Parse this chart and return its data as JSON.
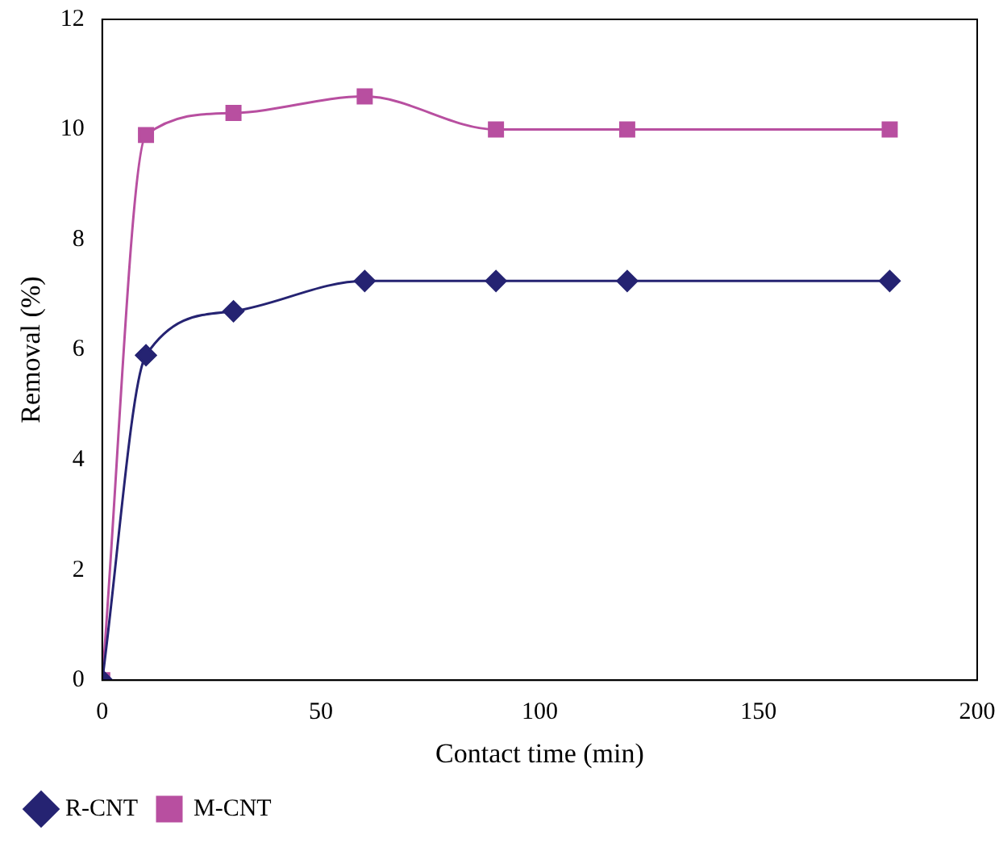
{
  "chart_data": {
    "type": "line",
    "xlabel": "Contact time (min)",
    "ylabel": "Removal (%)",
    "x": [
      0,
      10,
      30,
      60,
      90,
      120,
      180
    ],
    "series": [
      {
        "name": "R-CNT",
        "color": "#252372",
        "marker": "diamond",
        "values": [
          0,
          5.9,
          6.7,
          7.25,
          7.25,
          7.25,
          7.25
        ]
      },
      {
        "name": "M-CNT",
        "color": "#b84fa0",
        "marker": "square",
        "values": [
          0,
          9.9,
          10.3,
          10.6,
          10,
          10,
          10
        ]
      }
    ],
    "xlim": [
      0,
      200
    ],
    "xticks": [
      0,
      50,
      100,
      150,
      200
    ],
    "ylim": [
      0,
      12
    ],
    "yticks": [
      0,
      2,
      4,
      6,
      8,
      10,
      12
    ],
    "grid": false,
    "legend": "bottom left"
  }
}
